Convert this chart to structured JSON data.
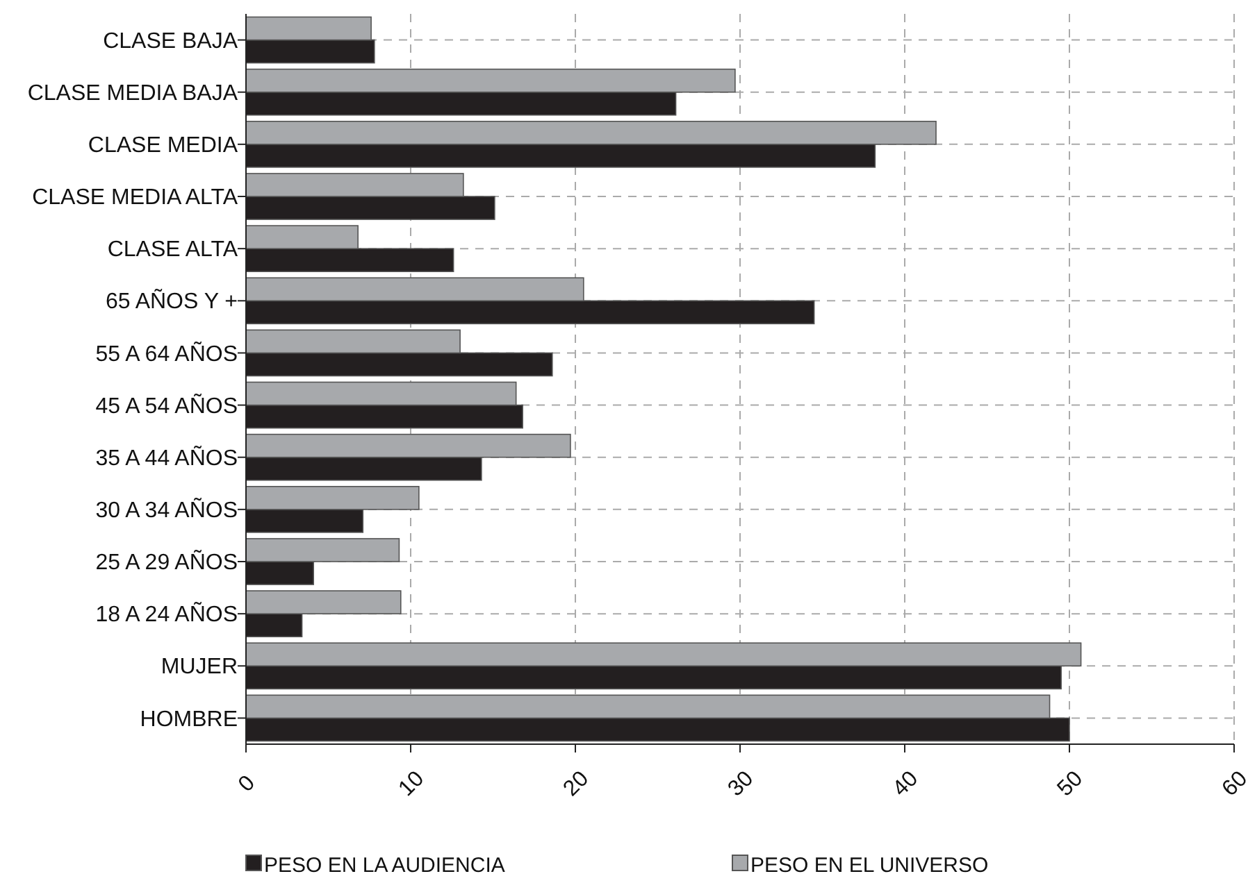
{
  "chart_data": {
    "type": "bar",
    "orientation": "horizontal",
    "categories": [
      "CLASE BAJA",
      "CLASE MEDIA BAJA",
      "CLASE MEDIA",
      "CLASE MEDIA ALTA",
      "CLASE ALTA",
      "65 AÑOS Y +",
      "55 A 64 AÑOS",
      "45 A 54 AÑOS",
      "35 A 44 AÑOS",
      "30 A 34 AÑOS",
      "25 A 29 AÑOS",
      "18 A 24 AÑOS",
      "MUJER",
      "HOMBRE"
    ],
    "series": [
      {
        "name": "PESO EN LA AUDIENCIA",
        "color": "#231f20",
        "values": [
          7.8,
          26.1,
          38.2,
          15.1,
          12.6,
          34.5,
          18.6,
          16.8,
          14.3,
          7.1,
          4.1,
          3.4,
          49.5,
          50.0
        ]
      },
      {
        "name": "PESO EN EL UNIVERSO",
        "color": "#a7a9ac",
        "values": [
          7.6,
          29.7,
          41.9,
          13.2,
          6.8,
          20.5,
          13.0,
          16.4,
          19.7,
          10.5,
          9.3,
          9.4,
          50.7,
          48.8
        ]
      }
    ],
    "xlim": [
      0,
      60
    ],
    "xticks": [
      0,
      10,
      20,
      30,
      40,
      50,
      60
    ],
    "grid": true,
    "legend": "bottom"
  }
}
